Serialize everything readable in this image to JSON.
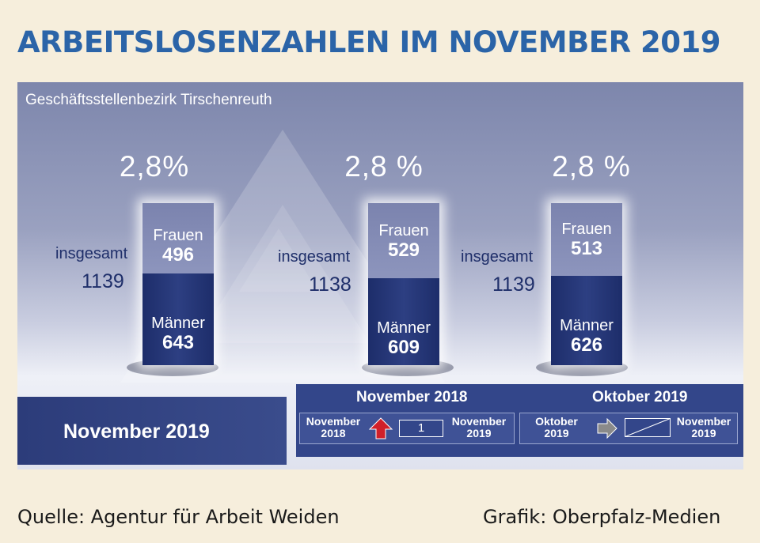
{
  "title": "ARBEITSLOSENZAHLEN IM NOVEMBER 2019",
  "subtitle": "Geschäftsstellenbezirk Tirschenreuth",
  "colors": {
    "title": "#2b64a8",
    "men_segment": "#23336f",
    "women_segment": "#8189b3",
    "increase_arrow": "#d0202a",
    "neutral_arrow": "#8a8a8a"
  },
  "chart_data": {
    "type": "bar",
    "stacked": true,
    "categories": [
      "November 2019",
      "November 2018",
      "Oktober 2019"
    ],
    "series": [
      {
        "name": "Männer",
        "values": [
          643,
          609,
          626
        ]
      },
      {
        "name": "Frauen",
        "values": [
          496,
          529,
          513
        ]
      }
    ],
    "totals": [
      1139,
      1138,
      1139
    ],
    "total_label": "insgesamt",
    "rates": [
      "2,8%",
      "2,8 %",
      "2,8 %"
    ]
  },
  "labels": {
    "frauen": "Frauen",
    "maenner": "Männer"
  },
  "bands": {
    "current": "November 2019",
    "comparisons": [
      {
        "heading": "November 2018",
        "from_line1": "November",
        "from_line2": "2018",
        "to_line1": "November",
        "to_line2": "2019",
        "change": "1",
        "arrow": "up-arrow-icon"
      },
      {
        "heading": "Oktober 2019",
        "from_line1": "Oktober",
        "from_line2": "2019",
        "to_line1": "November",
        "to_line2": "2019",
        "change": "",
        "arrow": "right-arrow-icon"
      }
    ]
  },
  "footer": {
    "source": "Quelle: Agentur für Arbeit Weiden",
    "credit": "Grafik: Oberpfalz-Medien"
  }
}
